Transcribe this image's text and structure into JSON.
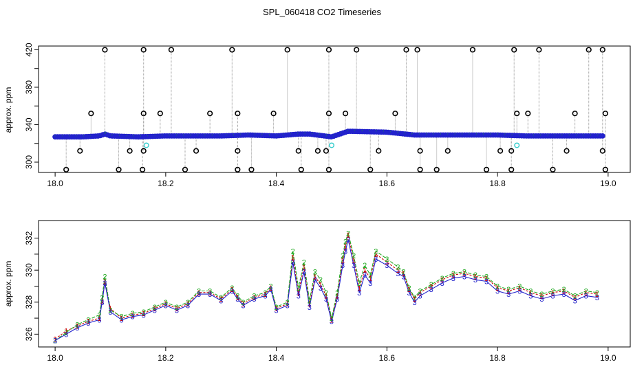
{
  "figure_title": "SPL_060418  CO2 Timeseries",
  "colors": {
    "ch1": "#cc0000",
    "ch2": "#22aa22",
    "ch3": "#2222cc",
    "outlier": "#000000",
    "filtered": "#33cccc",
    "spike_line": "#999999"
  },
  "chart_data": [
    {
      "type": "scatter",
      "title": "",
      "xlabel": "",
      "ylabel": "approx. ppm",
      "xlim": [
        17.97,
        19.04
      ],
      "ylim": [
        289,
        424
      ],
      "xticks": [
        "18.0",
        "18.2",
        "18.4",
        "18.6",
        "18.8",
        "19.0"
      ],
      "yticks": [
        "300",
        "340",
        "380",
        "420"
      ],
      "baseline_x": [
        18.0,
        18.05,
        18.08,
        18.09,
        18.1,
        18.15,
        18.2,
        18.3,
        18.35,
        18.4,
        18.44,
        18.46,
        18.5,
        18.53,
        18.6,
        18.65,
        18.7,
        18.75,
        18.8,
        18.85,
        18.9,
        18.95,
        18.99
      ],
      "baseline_y": [
        327,
        327,
        328,
        330,
        328,
        327,
        328,
        328,
        329,
        328,
        330,
        330,
        327,
        333,
        332,
        329,
        329,
        329,
        329,
        328,
        328,
        328,
        328
      ],
      "high_outliers_x": [
        18.09,
        18.16,
        18.21,
        18.32,
        18.42,
        18.495,
        18.545,
        18.635,
        18.655,
        18.755,
        18.83,
        18.875,
        18.965,
        18.99
      ],
      "high_outliers_y": [
        420,
        420,
        420,
        420,
        420,
        420,
        420,
        420,
        420,
        420,
        420,
        420,
        420,
        420
      ],
      "mid_outliers_x": [
        18.065,
        18.16,
        18.19,
        18.28,
        18.33,
        18.395,
        18.495,
        18.525,
        18.615,
        18.835,
        18.855,
        18.94,
        18.995
      ],
      "mid_outliers_y": [
        352,
        352,
        352,
        352,
        352,
        352,
        352,
        352,
        352,
        352,
        352,
        352,
        352
      ],
      "low_outliers_x": [
        18.045,
        18.135,
        18.16,
        18.255,
        18.33,
        18.44,
        18.475,
        18.49,
        18.585,
        18.66,
        18.71,
        18.805,
        18.825,
        18.925,
        18.99
      ],
      "low_outliers_y": [
        312,
        312,
        312,
        312,
        312,
        312,
        312,
        312,
        312,
        312,
        312,
        312,
        312,
        312,
        312
      ],
      "bottom_outliers_x": [
        18.02,
        18.115,
        18.158,
        18.235,
        18.33,
        18.355,
        18.445,
        18.495,
        18.57,
        18.66,
        18.69,
        18.78,
        18.825,
        18.9,
        18.995
      ],
      "bottom_outliers_y": [
        292,
        292,
        292,
        292,
        292,
        292,
        292,
        292,
        292,
        292,
        292,
        292,
        292,
        292,
        292
      ],
      "filtered_x": [
        18.165,
        18.5,
        18.835
      ],
      "filtered_y": [
        318,
        318,
        318
      ]
    },
    {
      "type": "line",
      "title": "",
      "xlabel": "",
      "ylabel": "approx. ppm",
      "xlim": [
        17.97,
        19.04
      ],
      "ylim": [
        325.2,
        333.1
      ],
      "xticks": [
        "18.0",
        "18.2",
        "18.4",
        "18.6",
        "18.8",
        "19.0"
      ],
      "yticks": [
        "326",
        "328",
        "330",
        "332"
      ],
      "x": [
        18.0,
        18.02,
        18.04,
        18.06,
        18.08,
        18.085,
        18.09,
        18.1,
        18.12,
        18.14,
        18.16,
        18.18,
        18.2,
        18.22,
        18.24,
        18.26,
        18.28,
        18.3,
        18.32,
        18.33,
        18.34,
        18.36,
        18.38,
        18.39,
        18.4,
        18.42,
        18.43,
        18.44,
        18.45,
        18.46,
        18.47,
        18.48,
        18.49,
        18.5,
        18.51,
        18.52,
        18.525,
        18.53,
        18.54,
        18.55,
        18.56,
        18.57,
        18.58,
        18.6,
        18.62,
        18.63,
        18.64,
        18.65,
        18.66,
        18.68,
        18.7,
        18.72,
        18.74,
        18.76,
        18.78,
        18.8,
        18.82,
        18.84,
        18.86,
        18.88,
        18.9,
        18.92,
        18.94,
        18.96,
        18.98
      ],
      "series": [
        {
          "name": "1",
          "symbol": "1",
          "values": [
            325.7,
            326.2,
            326.5,
            326.8,
            327.0,
            328.1,
            329.3,
            327.6,
            327.0,
            327.2,
            327.3,
            327.6,
            327.9,
            327.6,
            327.9,
            328.6,
            328.6,
            328.2,
            328.8,
            328.3,
            327.9,
            328.3,
            328.5,
            328.9,
            327.6,
            327.9,
            330.8,
            328.6,
            330.2,
            327.9,
            329.6,
            329.1,
            328.4,
            326.9,
            328.4,
            330.6,
            331.5,
            332.2,
            330.6,
            328.9,
            330.0,
            329.5,
            331.0,
            330.5,
            330.0,
            329.8,
            328.8,
            328.2,
            328.6,
            329.0,
            329.4,
            329.7,
            329.8,
            329.6,
            329.5,
            328.9,
            328.7,
            328.9,
            328.6,
            328.4,
            328.6,
            328.7,
            328.3,
            328.6,
            328.5
          ]
        },
        {
          "name": "2",
          "symbol": "2",
          "values": [
            325.6,
            326.1,
            326.6,
            326.9,
            327.2,
            328.3,
            329.6,
            327.5,
            327.1,
            327.3,
            327.4,
            327.7,
            328.0,
            327.7,
            328.0,
            328.7,
            328.7,
            328.3,
            328.9,
            328.4,
            328.0,
            328.4,
            328.6,
            329.0,
            327.7,
            328.0,
            331.2,
            328.9,
            330.5,
            328.1,
            329.9,
            329.4,
            328.6,
            327.0,
            328.6,
            330.9,
            331.8,
            332.3,
            330.9,
            329.2,
            330.3,
            329.7,
            331.2,
            330.7,
            330.2,
            329.9,
            328.9,
            328.3,
            328.7,
            329.1,
            329.5,
            329.8,
            329.9,
            329.7,
            329.6,
            329.0,
            328.8,
            329.0,
            328.7,
            328.5,
            328.7,
            328.8,
            328.4,
            328.7,
            328.6
          ]
        },
        {
          "name": "3",
          "symbol": "3",
          "values": [
            325.6,
            326.0,
            326.4,
            326.7,
            326.9,
            328.0,
            329.2,
            327.4,
            326.9,
            327.1,
            327.2,
            327.5,
            327.8,
            327.5,
            327.8,
            328.5,
            328.5,
            328.1,
            328.7,
            328.2,
            327.8,
            328.2,
            328.4,
            328.8,
            327.5,
            327.8,
            330.5,
            328.4,
            329.9,
            327.7,
            329.4,
            328.9,
            328.2,
            326.8,
            328.2,
            330.3,
            331.2,
            331.9,
            330.3,
            328.6,
            329.7,
            329.2,
            330.7,
            330.3,
            329.8,
            329.6,
            328.6,
            328.0,
            328.4,
            328.8,
            329.2,
            329.5,
            329.6,
            329.4,
            329.3,
            328.7,
            328.5,
            328.7,
            328.4,
            328.2,
            328.4,
            328.5,
            328.1,
            328.4,
            328.3
          ]
        }
      ]
    }
  ]
}
